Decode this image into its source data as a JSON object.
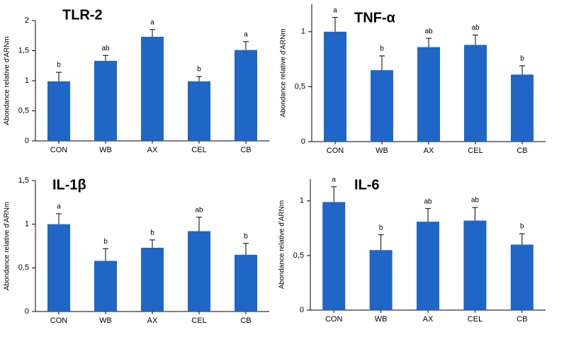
{
  "chart_data": [
    {
      "type": "bar",
      "title": "TLR-2",
      "y_label": "Abondance relative d'ARNm",
      "categories": [
        "CON",
        "WB",
        "AX",
        "CEL",
        "CB"
      ],
      "values": [
        0.99,
        1.33,
        1.73,
        0.99,
        1.51
      ],
      "errors": [
        0.15,
        0.09,
        0.12,
        0.08,
        0.14
      ],
      "labels": [
        "b",
        "ab",
        "a",
        "b",
        "a"
      ],
      "color": "#1f66c6",
      "ylim": [
        0,
        2
      ],
      "yticks": [
        0,
        {
          "value": 0.5,
          "label": "0,5"
        },
        1,
        {
          "value": 1.5,
          "label": "1,5"
        },
        2
      ]
    },
    {
      "type": "bar",
      "title": "TNF-α",
      "y_label": "Abondance relative d'ARNm",
      "categories": [
        "CON",
        "WB",
        "AX",
        "CEL",
        "CB"
      ],
      "values": [
        1.0,
        0.65,
        0.86,
        0.88,
        0.61
      ],
      "errors": [
        0.13,
        0.13,
        0.08,
        0.09,
        0.08
      ],
      "labels": [
        "a",
        "b",
        "ab",
        "ab",
        "b"
      ],
      "color": "#1f66c6",
      "ylim": [
        0,
        1.25
      ],
      "yticks": [
        0,
        {
          "value": 0.5,
          "label": "0,5"
        },
        1
      ]
    },
    {
      "type": "bar",
      "title": "IL-1β",
      "y_label": "Abondance relative d'ARNm",
      "categories": [
        "CON",
        "WB",
        "AX",
        "CEL",
        "CB"
      ],
      "values": [
        1.0,
        0.58,
        0.73,
        0.92,
        0.65
      ],
      "errors": [
        0.12,
        0.14,
        0.09,
        0.16,
        0.13
      ],
      "labels": [
        "a",
        "b",
        "b",
        "ab",
        "b"
      ],
      "color": "#1f66c6",
      "ylim": [
        0,
        1.5
      ],
      "yticks": [
        0,
        {
          "value": 0.5,
          "label": "0,5"
        },
        1,
        {
          "value": 1.5,
          "label": "1,5"
        }
      ]
    },
    {
      "type": "bar",
      "title": "IL-6",
      "y_label": "Abondance relative d'ARNm",
      "categories": [
        "CON",
        "WB",
        "AX",
        "CEL",
        "CB"
      ],
      "values": [
        0.99,
        0.55,
        0.81,
        0.82,
        0.6
      ],
      "errors": [
        0.14,
        0.14,
        0.12,
        0.12,
        0.1
      ],
      "labels": [
        "a",
        "b",
        "ab",
        "ab",
        "b"
      ],
      "color": "#1f66c6",
      "ylim": [
        0,
        1.2
      ],
      "yticks": [
        0,
        {
          "value": 0.5,
          "label": "0,5"
        },
        1
      ]
    }
  ]
}
